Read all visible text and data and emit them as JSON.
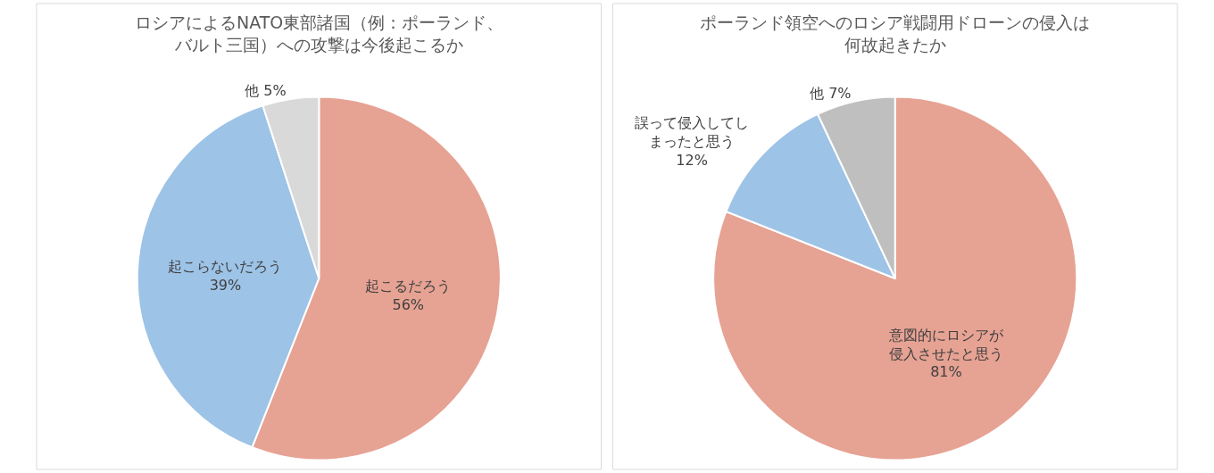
{
  "chart_data": [
    {
      "type": "pie",
      "title": "ロシアによるNATO東部諸国（例：ポーランド、バルト三国）への攻撃は今後起こるか",
      "categories": [
        "起こるだろう",
        "起こらないだろう",
        "他"
      ],
      "values": [
        56,
        39,
        5
      ],
      "value_labels": [
        "56%",
        "39%",
        "5%"
      ],
      "colors": [
        "#e6a293",
        "#9dc3e6",
        "#d9d9d9"
      ]
    },
    {
      "type": "pie",
      "title": "ポーランド領空へのロシア戦闘用ドローンの侵入は何故起きたか",
      "categories": [
        "意図的にロシアが侵入させたと思う",
        "誤って侵入してしまったと思う",
        "他"
      ],
      "values": [
        81,
        12,
        7
      ],
      "value_labels": [
        "81%",
        "12%",
        "7%"
      ],
      "colors": [
        "#e6a293",
        "#9dc3e6",
        "#bfbfbf"
      ]
    }
  ]
}
